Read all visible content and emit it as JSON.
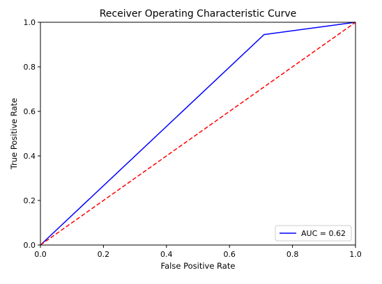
{
  "chart_data": {
    "type": "line",
    "title": "Receiver Operating Characteristic Curve",
    "xlabel": "False Positive Rate",
    "ylabel": "True Positive Rate",
    "xlim": [
      0.0,
      1.0
    ],
    "ylim": [
      0.0,
      1.0
    ],
    "xticks": [
      "0.0",
      "0.2",
      "0.4",
      "0.6",
      "0.8",
      "1.0"
    ],
    "yticks": [
      "0.0",
      "0.2",
      "0.4",
      "0.6",
      "0.8",
      "1.0"
    ],
    "grid": false,
    "legend_position": "lower-right",
    "series": [
      {
        "name": "AUC = 0.62",
        "color": "#0000ff",
        "style": "solid",
        "x": [
          0.0,
          0.71,
          1.0
        ],
        "y": [
          0.0,
          0.945,
          1.0
        ]
      },
      {
        "color": "#ff0000",
        "style": "dashed",
        "x": [
          0.0,
          1.0
        ],
        "y": [
          0.0,
          1.0
        ]
      }
    ]
  }
}
